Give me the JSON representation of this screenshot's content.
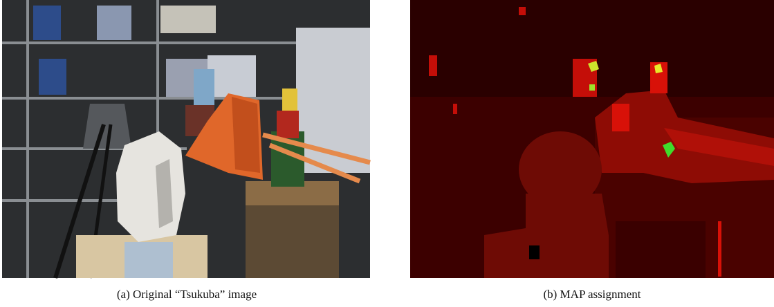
{
  "figure": {
    "panels": [
      {
        "label": "(a)",
        "caption": "Original “Tsukuba” image"
      },
      {
        "label": "(b)",
        "caption": "MAP assignment"
      }
    ]
  }
}
